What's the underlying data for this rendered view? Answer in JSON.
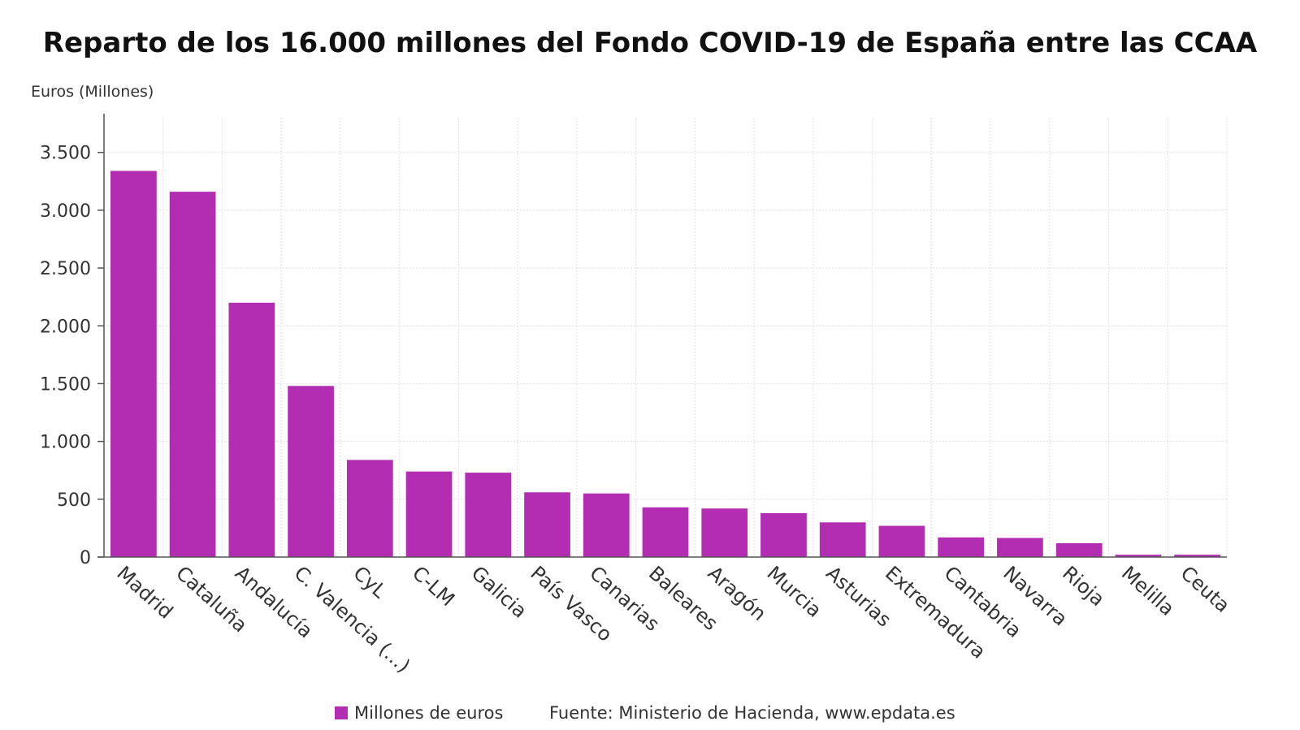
{
  "chart_data": {
    "type": "bar",
    "title": "Reparto de los 16.000 millones del Fondo COVID-19 de España entre las CCAA",
    "ylabel": "Euros (Millones)",
    "xlabel": "",
    "ylim": [
      0,
      3800
    ],
    "yticks": [
      0,
      500,
      1000,
      1500,
      2000,
      2500,
      3000,
      3500
    ],
    "ytick_labels": [
      "0",
      "500",
      "1.000",
      "1.500",
      "2.000",
      "2.500",
      "3.000",
      "3.500"
    ],
    "grid": true,
    "categories": [
      "Madrid",
      "Cataluña",
      "Andalucía",
      "C. Valencia (...)",
      "CyL",
      "C-LM",
      "Galicia",
      "País Vasco",
      "Canarias",
      "Baleares",
      "Aragón",
      "Murcia",
      "Asturias",
      "Extremadura",
      "Cantabria",
      "Navarra",
      "Rioja",
      "Melilla",
      "Ceuta"
    ],
    "series": [
      {
        "name": "Millones de euros",
        "color": "#b32db3",
        "values": [
          3340,
          3160,
          2200,
          1480,
          840,
          740,
          730,
          560,
          550,
          430,
          420,
          380,
          300,
          270,
          170,
          165,
          120,
          20,
          20
        ]
      }
    ],
    "legend_position": "bottom",
    "source": "Fuente: Ministerio de Hacienda, www.epdata.es"
  }
}
